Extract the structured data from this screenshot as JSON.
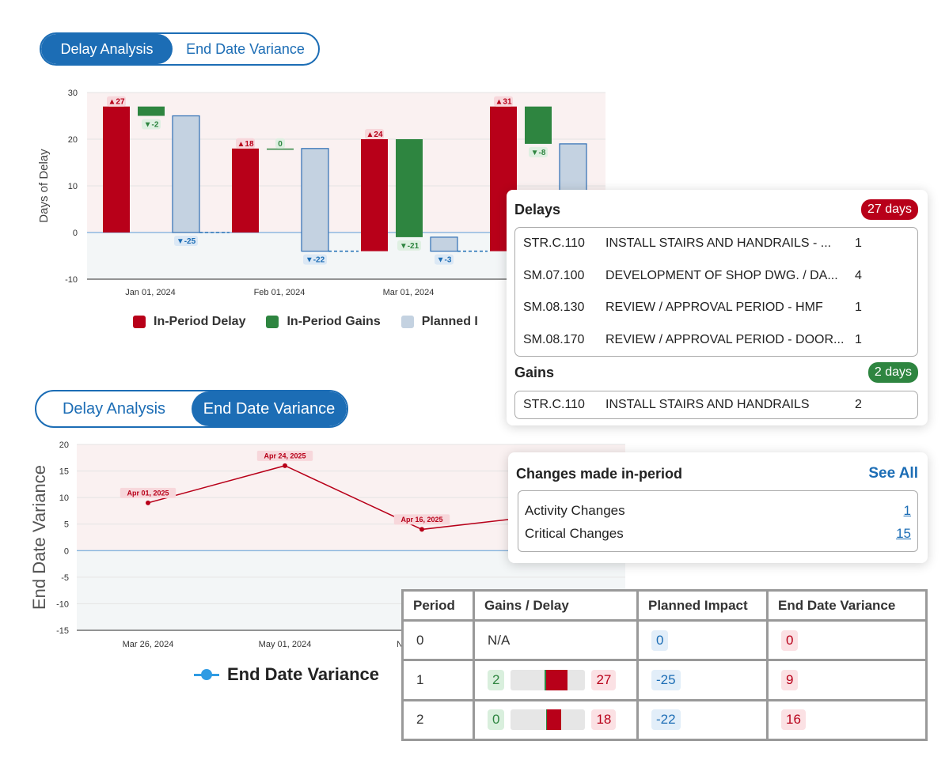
{
  "toggle_top": {
    "tabs": [
      "Delay Analysis",
      "End Date Variance"
    ],
    "active": 0
  },
  "toggle_bottom": {
    "tabs": [
      "Delay Analysis",
      "End Date Variance"
    ],
    "active": 1
  },
  "colors": {
    "accent": "#1c6db5",
    "delay": "#b80019",
    "gain": "#2e8540",
    "planned": "#c4d2e1",
    "line": "#b80019",
    "legend_line": "#2f9be3"
  },
  "chart_data": [
    {
      "type": "bar",
      "ylabel": "Days of Delay",
      "ylim": [
        -10,
        30
      ],
      "yticks": [
        30,
        20,
        10,
        0,
        -10
      ],
      "x_tick_labels": [
        "Jan 01, 2024",
        "Feb 01, 2024",
        "Mar 01, 2024"
      ],
      "legend": [
        "In-Period Delay",
        "In-Period Gains",
        "Planned I"
      ],
      "groups": [
        {
          "delay": {
            "from": 0,
            "to": 27,
            "label": "▲27"
          },
          "gain": {
            "from": 27,
            "to": 25,
            "label": "▼-2"
          },
          "planned": {
            "from": 25,
            "to": 0,
            "label": "▼-25"
          }
        },
        {
          "delay": {
            "from": 0,
            "to": 18,
            "label": "▲18"
          },
          "gain": {
            "from": 18,
            "to": 18,
            "label": "0"
          },
          "planned": {
            "from": 18,
            "to": -4,
            "label": "▼-22"
          }
        },
        {
          "delay": {
            "from": -4,
            "to": 20,
            "label": "▲24"
          },
          "gain": {
            "from": 20,
            "to": -1,
            "label": "▼-21"
          },
          "planned": {
            "from": -1,
            "to": -4,
            "label": "▼-3"
          }
        },
        {
          "delay": {
            "from": -4,
            "to": 27,
            "label": "▲31"
          },
          "gain": {
            "from": 27,
            "to": 19,
            "label": "▼-8"
          },
          "planned": {
            "from": 19,
            "to": 0,
            "label": ""
          }
        }
      ]
    },
    {
      "type": "line",
      "ylabel": "End Date Variance",
      "ylim": [
        -15,
        20
      ],
      "yticks": [
        20,
        15,
        10,
        5,
        0,
        -5,
        -10,
        -15
      ],
      "x_tick_labels": [
        "Mar 26, 2024",
        "May 01, 2024",
        "N"
      ],
      "legend": [
        "End Date Variance"
      ],
      "points": [
        {
          "y": 9,
          "label": "Apr 01, 2025"
        },
        {
          "y": 16,
          "label": "Apr 24, 2025"
        },
        {
          "y": 4,
          "label": "Apr 16, 2025"
        },
        {
          "y": 6,
          "label": ""
        }
      ]
    }
  ],
  "delays_card": {
    "title": "Delays",
    "badge": "27 days",
    "rows": [
      {
        "code": "STR.C.110",
        "desc": "INSTALL STAIRS AND HANDRAILS - ...",
        "num": "1"
      },
      {
        "code": "SM.07.100",
        "desc": "DEVELOPMENT OF SHOP DWG. / DA...",
        "num": "4"
      },
      {
        "code": "SM.08.130",
        "desc": "REVIEW / APPROVAL PERIOD - HMF",
        "num": "1"
      },
      {
        "code": "SM.08.170",
        "desc": "REVIEW / APPROVAL PERIOD - DOOR...",
        "num": "1"
      }
    ]
  },
  "gains_card": {
    "title": "Gains",
    "badge": "2 days",
    "rows": [
      {
        "code": "STR.C.110",
        "desc": "INSTALL STAIRS AND HANDRAILS",
        "num": "2"
      }
    ]
  },
  "changes_card": {
    "title": "Changes made in-period",
    "see_all": "See All",
    "rows": [
      {
        "label": "Activity Changes",
        "value": "1"
      },
      {
        "label": "Critical Changes",
        "value": "15"
      }
    ]
  },
  "period_table": {
    "headers": [
      "Period",
      "Gains / Delay",
      "Planned Impact",
      "End Date Variance"
    ],
    "rows": [
      {
        "period": "0",
        "gains_delay": "N/A",
        "gain": null,
        "delay": null,
        "planned": "0",
        "variance": "0"
      },
      {
        "period": "1",
        "gains_delay": null,
        "gain": "2",
        "delay": "27",
        "planned": "-25",
        "variance": "9"
      },
      {
        "period": "2",
        "gains_delay": null,
        "gain": "0",
        "delay": "18",
        "planned": "-22",
        "variance": "16"
      }
    ]
  }
}
